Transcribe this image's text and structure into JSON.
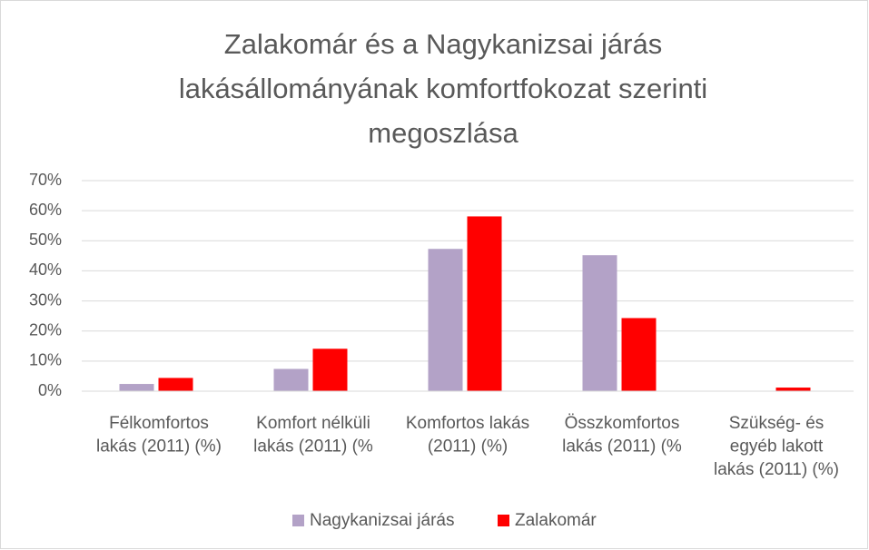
{
  "chart_data": {
    "type": "bar",
    "title": "Zalakomár és a Nagykanizsai járás lakásállományának komfortfokozat szerinti megoszlása",
    "categories": [
      [
        "Félkomfortos",
        "lakás (2011) (%)"
      ],
      [
        "Komfort nélküli",
        "lakás (2011) (%"
      ],
      [
        "Komfortos lakás",
        "(2011) (%)"
      ],
      [
        "Összkomfortos",
        "lakás (2011) (%"
      ],
      [
        "Szükség- és",
        "egyéb lakott",
        "lakás (2011) (%)"
      ]
    ],
    "series": [
      {
        "name": "Nagykanizsai járás",
        "color": "#b3a2c7",
        "values": [
          2.4,
          7.4,
          47.3,
          45.2,
          0
        ]
      },
      {
        "name": "Zalakomár",
        "color": "#ff0000",
        "values": [
          4.4,
          14.1,
          58.1,
          24.3,
          1.2
        ]
      }
    ],
    "ylim": [
      0,
      70
    ],
    "yticks": [
      {
        "value": 0,
        "label": "0%"
      },
      {
        "value": 10,
        "label": "10%"
      },
      {
        "value": 20,
        "label": "20%"
      },
      {
        "value": 30,
        "label": "30%"
      },
      {
        "value": 40,
        "label": "40%"
      },
      {
        "value": 50,
        "label": "50%"
      },
      {
        "value": 60,
        "label": "60%"
      },
      {
        "value": 70,
        "label": "70%"
      }
    ],
    "grid": true,
    "legend": "bottom"
  }
}
